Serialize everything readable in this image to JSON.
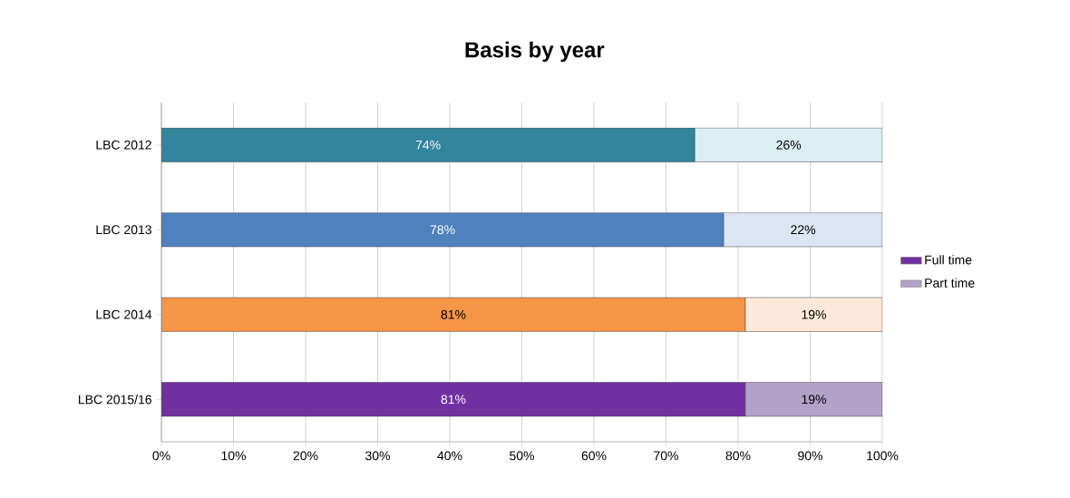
{
  "chart_data": {
    "type": "bar",
    "orientation": "horizontal",
    "stacked": true,
    "title": "Basis by year",
    "categories": [
      "LBC 2012",
      "LBC 2013",
      "LBC 2014",
      "LBC 2015/16"
    ],
    "series": [
      {
        "name": "Full time",
        "color": "#7030a0",
        "colors": [
          "#31859c",
          "#4f81bd",
          "#f79646",
          "#7030a0"
        ],
        "values": [
          74,
          78,
          81,
          81
        ],
        "value_labels": [
          "74%",
          "78%",
          "81%",
          "81%"
        ]
      },
      {
        "name": "Part time",
        "color": "#b3a2c7",
        "colors": [
          "#dbeef4",
          "#dce6f2",
          "#fde9d9",
          "#b3a2c7"
        ],
        "values": [
          26,
          22,
          19,
          19
        ],
        "value_labels": [
          "26%",
          "22%",
          "19%",
          "19%"
        ]
      }
    ],
    "xlim": [
      0,
      100
    ],
    "xticks": [
      {
        "value": 0,
        "label": "0%"
      },
      {
        "value": 10,
        "label": "10%"
      },
      {
        "value": 20,
        "label": "20%"
      },
      {
        "value": 30,
        "label": "30%"
      },
      {
        "value": 40,
        "label": "40%"
      },
      {
        "value": 50,
        "label": "50%"
      },
      {
        "value": 60,
        "label": "60%"
      },
      {
        "value": 70,
        "label": "70%"
      },
      {
        "value": 80,
        "label": "80%"
      },
      {
        "value": 90,
        "label": "90%"
      },
      {
        "value": 100,
        "label": "100%"
      }
    ],
    "grid": "x",
    "legend": "right"
  }
}
